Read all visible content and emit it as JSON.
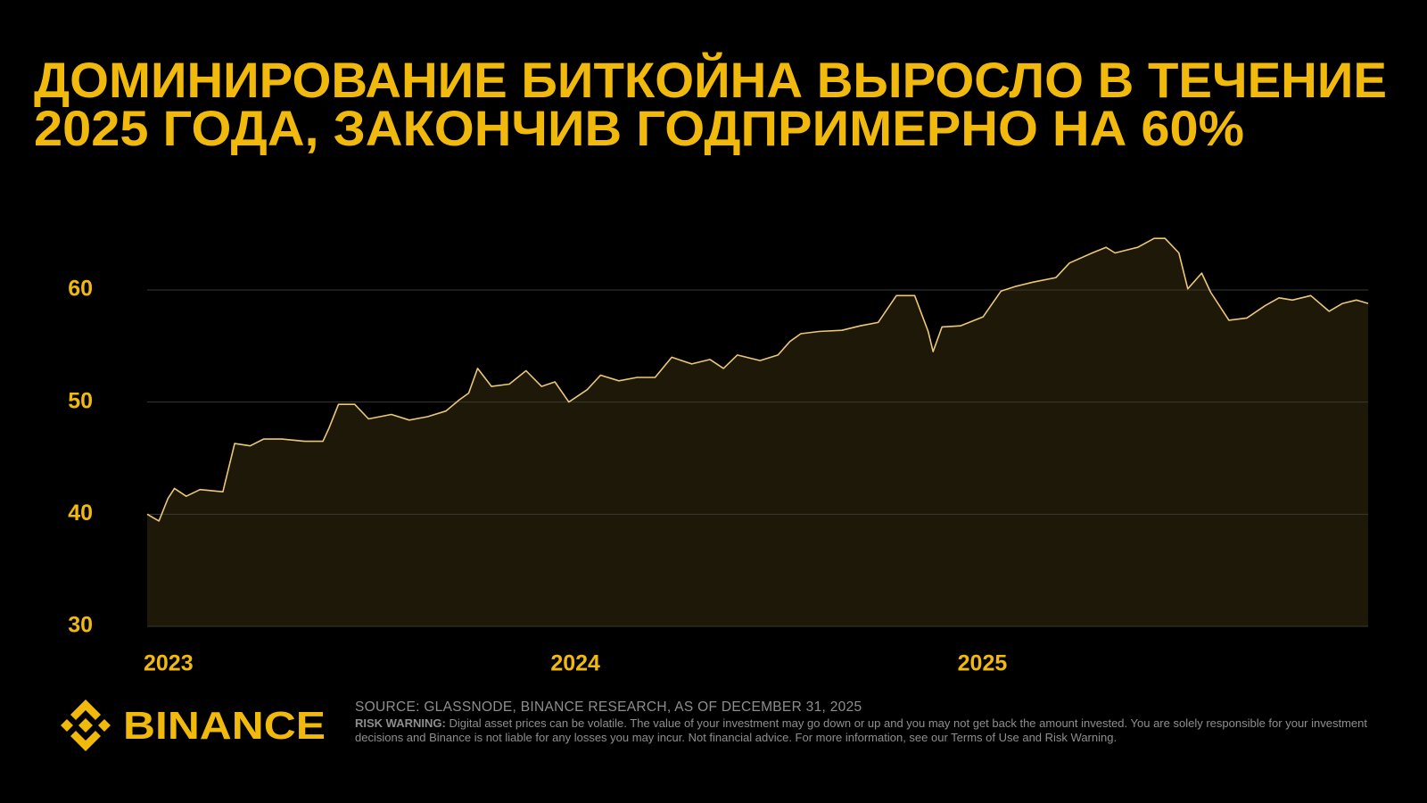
{
  "chart_data": {
    "type": "area",
    "title": [
      "ДОМИНИРОВАНИЕ БИТКОЙНА ВЫРОСЛО В ТЕЧЕНИЕ",
      "2025 ГОДА, ЗАКОНЧИВ ГОДПРИМЕРНО НА 60%"
    ],
    "x": [
      2023.0,
      2023.029,
      2023.051,
      2023.067,
      2023.096,
      2023.13,
      2023.186,
      2023.215,
      2023.253,
      2023.286,
      2023.331,
      2023.387,
      2023.432,
      2023.447,
      2023.47,
      2023.51,
      2023.544,
      2023.6,
      2023.644,
      2023.689,
      2023.734,
      2023.767,
      2023.79,
      2023.812,
      2023.846,
      2023.89,
      2023.931,
      2023.969,
      2024.002,
      2024.036,
      2024.081,
      2024.114,
      2024.159,
      2024.204,
      2024.248,
      2024.289,
      2024.338,
      2024.383,
      2024.416,
      2024.45,
      2024.506,
      2024.55,
      2024.579,
      2024.606,
      2024.651,
      2024.707,
      2024.752,
      2024.796,
      2024.841,
      2024.886,
      2024.919,
      2024.931,
      2024.953,
      2024.998,
      2025.054,
      2025.098,
      2025.132,
      2025.177,
      2025.233,
      2025.266,
      2025.322,
      2025.356,
      2025.378,
      2025.434,
      2025.474,
      2025.501,
      2025.535,
      2025.557,
      2025.591,
      2025.613,
      2025.658,
      2025.702,
      2025.747,
      2025.781,
      2025.814,
      2025.859,
      2025.904,
      2025.937,
      2025.971,
      2026.0
    ],
    "values": [
      40.0,
      39.4,
      41.4,
      42.3,
      41.6,
      42.2,
      42.0,
      46.3,
      46.1,
      46.7,
      46.7,
      46.5,
      46.5,
      47.7,
      49.8,
      49.8,
      48.5,
      48.9,
      48.4,
      48.7,
      49.2,
      50.2,
      50.8,
      53.0,
      51.4,
      51.6,
      52.8,
      51.4,
      51.8,
      50.0,
      51.1,
      52.4,
      51.9,
      52.2,
      52.2,
      54.0,
      53.4,
      53.8,
      53.0,
      54.2,
      53.7,
      54.2,
      55.4,
      56.1,
      56.3,
      56.4,
      56.8,
      57.1,
      59.5,
      59.5,
      56.3,
      54.5,
      56.7,
      56.8,
      57.6,
      59.9,
      60.3,
      60.7,
      61.1,
      62.4,
      63.3,
      63.8,
      63.3,
      63.8,
      64.6,
      64.6,
      63.3,
      60.1,
      61.5,
      59.8,
      57.3,
      57.5,
      58.6,
      59.3,
      59.1,
      59.5,
      58.1,
      58.8,
      59.1,
      58.8
    ],
    "color": "#ecc77a",
    "fill": "#1d1807",
    "xlim": [
      2023,
      2026
    ],
    "xticks": [
      2023,
      2024,
      2025
    ],
    "ylim": [
      30,
      67
    ],
    "yticks": [
      30,
      40,
      50,
      60
    ],
    "grid": true
  },
  "footer": {
    "brand": "BINANCE",
    "source": "SOURCE: GLASSNODE, BINANCE RESEARCH, AS OF DECEMBER 31, 2025",
    "risk_label": "RISK WARNING:",
    "risk_text": "Digital asset prices can be volatile. The value of your investment may go down or up and you may not get back the amount invested. You are solely responsible for your investment decisions and Binance is not liable for any losses you may incur. Not financial advice. For more information, see our Terms of Use and Risk Warning."
  }
}
